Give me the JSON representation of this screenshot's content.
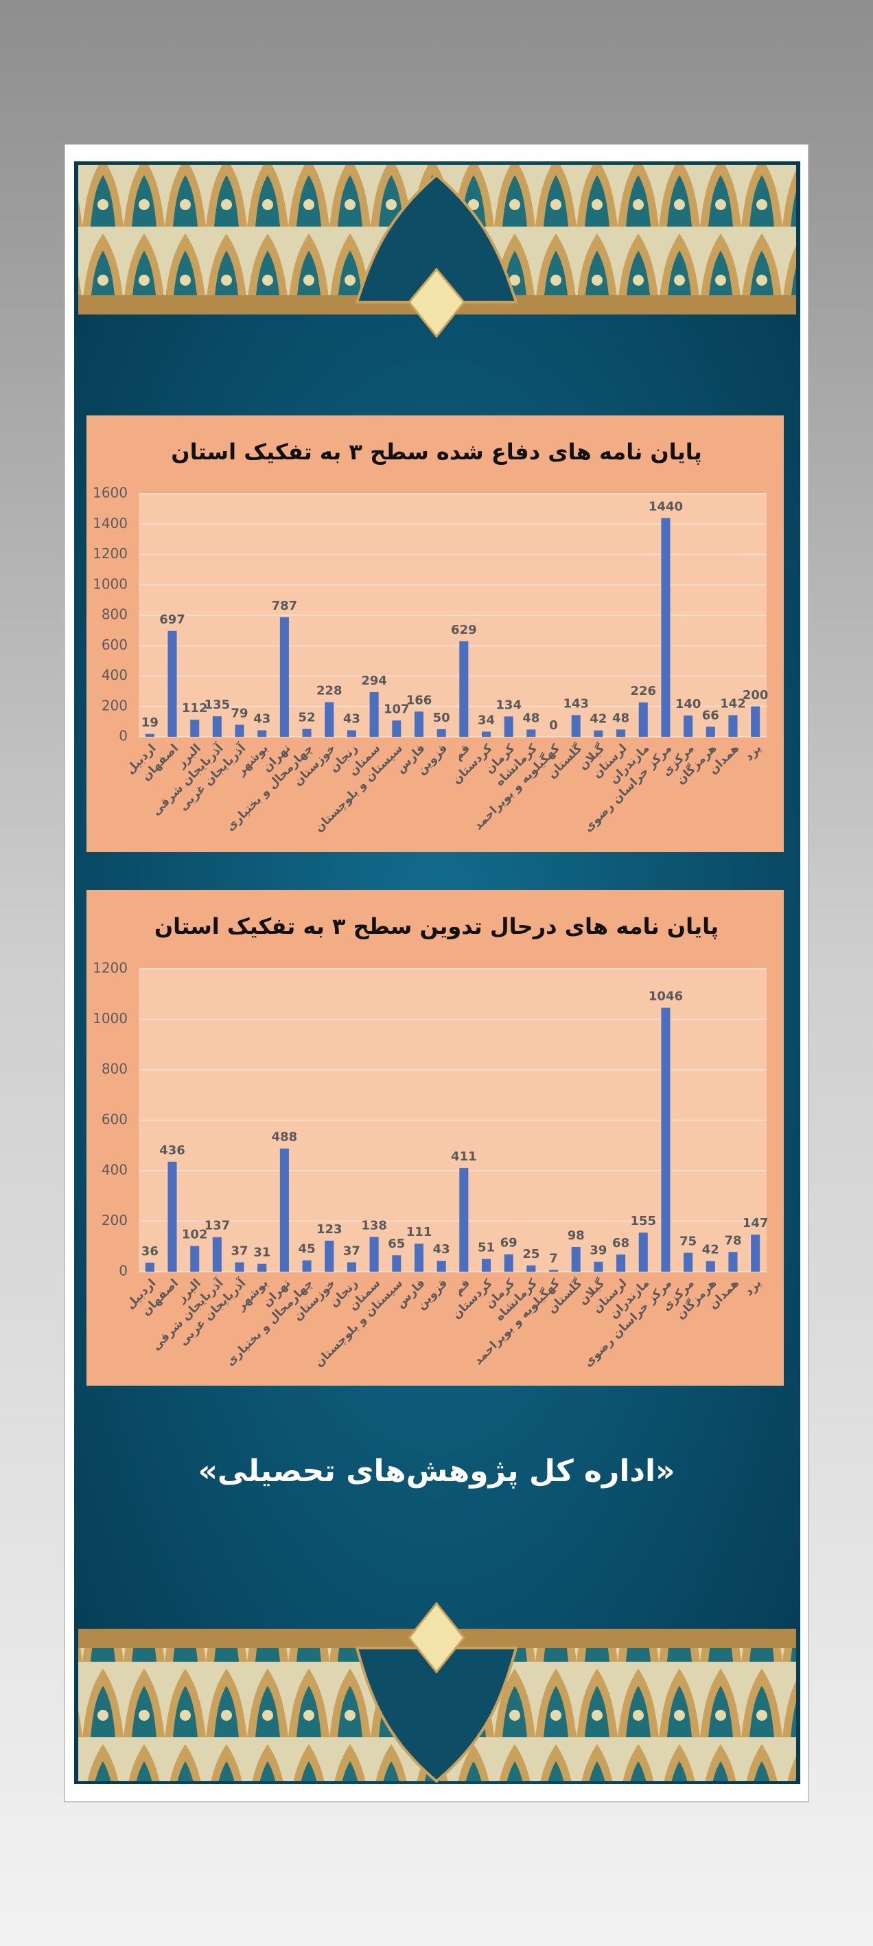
{
  "chart_data": [
    {
      "type": "bar",
      "title": "پایان نامه های دفاع شده سطح ۳ به تفکیک استان",
      "categories": [
        "اردبیل",
        "اصفهان",
        "البرز",
        "آذربایجان شرقی",
        "آذربایجان غربی",
        "بوشهر",
        "تهران",
        "چهارمحال و بختیاری",
        "خوزستان",
        "زنجان",
        "سمنان",
        "سیستان و بلوچستان",
        "فارس",
        "قزوین",
        "قم",
        "کردستان",
        "کرمان",
        "کرمانشاه",
        "کهگیلویه و بویراحمد",
        "گلستان",
        "گیلان",
        "لرستان",
        "مازندران",
        "مرکز خراسان رضوی",
        "مرکزی",
        "هرمزگان",
        "همدان",
        "یزد"
      ],
      "values": [
        19,
        697,
        112,
        135,
        79,
        43,
        787,
        52,
        228,
        43,
        294,
        107,
        166,
        50,
        629,
        34,
        134,
        48,
        0,
        143,
        42,
        48,
        226,
        1440,
        140,
        66,
        142,
        200
      ],
      "color": "#4a6fc0",
      "ylim": [
        0,
        1600
      ],
      "yticks": [
        0,
        200,
        400,
        600,
        800,
        1000,
        1200,
        1400,
        1600
      ],
      "grid": true
    },
    {
      "type": "bar",
      "title": "پایان نامه های درحال تدوین سطح ۳ به تفکیک استان",
      "categories": [
        "اردبیل",
        "اصفهان",
        "البرز",
        "آذربایجان شرقی",
        "آذربایجان غربی",
        "بوشهر",
        "تهران",
        "چهارمحال و بختیاری",
        "خوزستان",
        "زنجان",
        "سمنان",
        "سیستان و بلوچستان",
        "فارس",
        "قزوین",
        "قم",
        "کردستان",
        "کرمان",
        "کرمانشاه",
        "کهگیلویه و بویراحمد",
        "گلستان",
        "گیلان",
        "لرستان",
        "مازندران",
        "مرکز خراسان رضوی",
        "مرکزی",
        "هرمزگان",
        "همدان",
        "یزد"
      ],
      "values": [
        36,
        436,
        102,
        137,
        37,
        31,
        488,
        45,
        123,
        37,
        138,
        65,
        111,
        43,
        411,
        51,
        69,
        25,
        7,
        98,
        39,
        68,
        155,
        1046,
        75,
        42,
        78,
        147
      ],
      "color": "#4a6fc0",
      "ylim": [
        0,
        1200
      ],
      "yticks": [
        0,
        200,
        400,
        600,
        800,
        1000,
        1200
      ],
      "grid": true
    }
  ],
  "banner_text": "«اداره کل پژوهش‌های تحصیلی»"
}
